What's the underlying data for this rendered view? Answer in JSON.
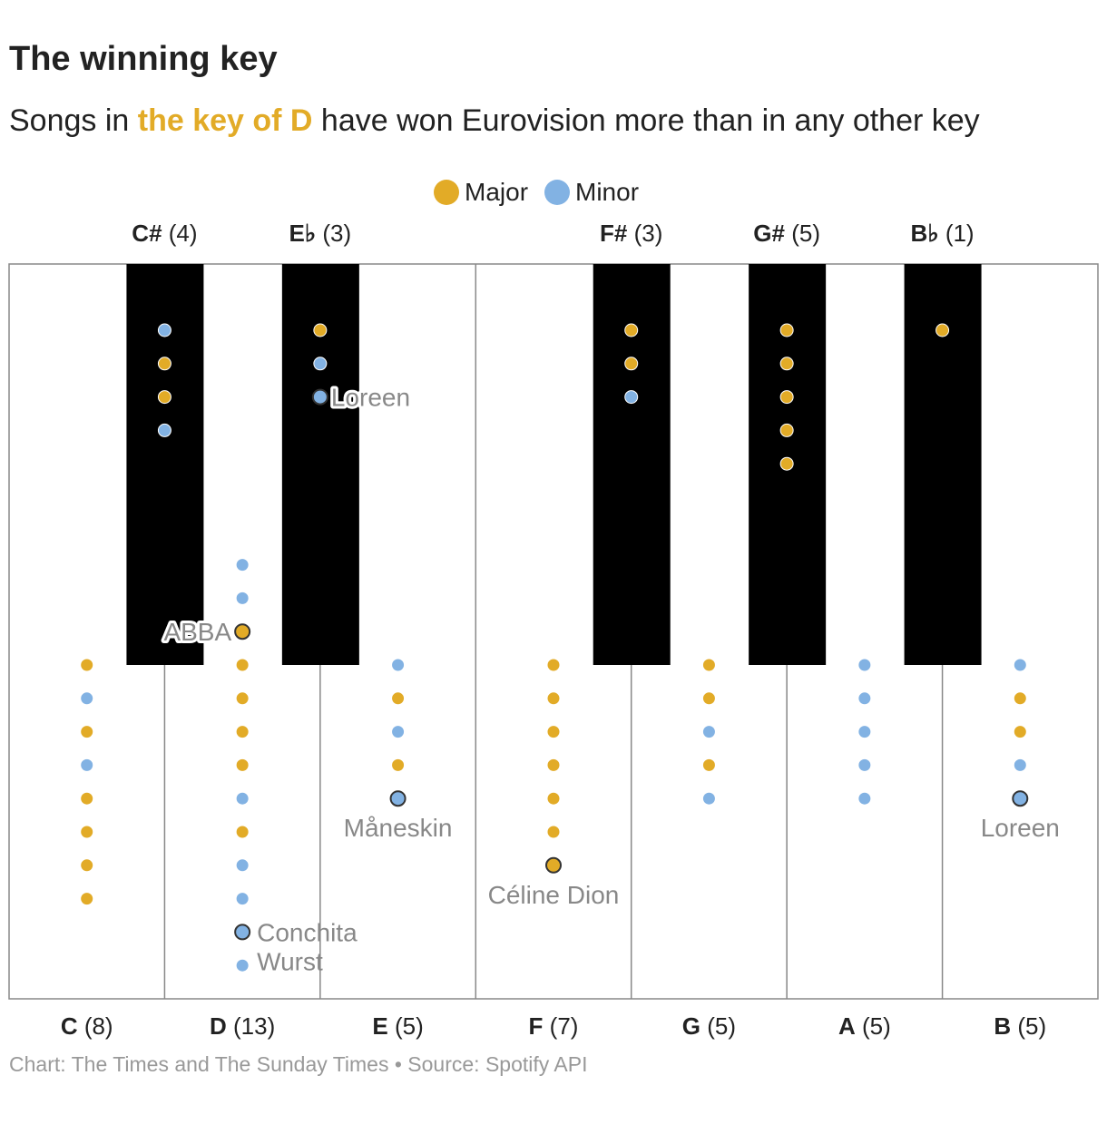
{
  "title": "The winning key",
  "subtitle": {
    "before": "Songs in ",
    "highlight": "the key of D",
    "after": " have won Eurovision more than in any other key"
  },
  "footer": "Chart: The Times and The Sunday Times • Source: Spotify API",
  "colors": {
    "major": "#e2ab27",
    "minor": "#82b2e3",
    "black_key": "#000000",
    "key_border": "#888888"
  },
  "chart_data": {
    "type": "scatter",
    "title": "The winning key",
    "legend": [
      {
        "name": "Major",
        "color": "#e2ab27"
      },
      {
        "name": "Minor",
        "color": "#82b2e3"
      }
    ],
    "legend_position": "top-center",
    "keys": [
      {
        "name": "C",
        "count": "(8)",
        "type": "white",
        "dots": [
          "M",
          "m",
          "M",
          "m",
          "M",
          "M",
          "M",
          "M"
        ]
      },
      {
        "name": "C#",
        "count": "(4)",
        "type": "black",
        "dots": [
          "m",
          "M",
          "M",
          "m"
        ]
      },
      {
        "name": "D",
        "count": "(13)",
        "type": "white",
        "dots": [
          "m",
          "m",
          "M",
          "M",
          "M",
          "M",
          "M",
          "m",
          "M",
          "m",
          "m",
          "m",
          "m"
        ],
        "annotations": [
          {
            "index": 2,
            "label": "ABBA"
          },
          {
            "index": 11,
            "label": "Conchita Wurst"
          }
        ]
      },
      {
        "name": "E♭",
        "count": "(3)",
        "type": "black",
        "dots": [
          "M",
          "m",
          "m"
        ],
        "annotations": [
          {
            "index": 2,
            "label": "Loreen"
          }
        ]
      },
      {
        "name": "E",
        "count": "(5)",
        "type": "white",
        "dots": [
          "m",
          "M",
          "m",
          "M",
          "m"
        ],
        "annotations": [
          {
            "index": 4,
            "label": "Måneskin"
          }
        ]
      },
      {
        "name": "F",
        "count": "(7)",
        "type": "white",
        "dots": [
          "M",
          "M",
          "M",
          "M",
          "M",
          "M",
          "M"
        ],
        "annotations": [
          {
            "index": 6,
            "label": "Céline Dion"
          }
        ]
      },
      {
        "name": "F#",
        "count": "(3)",
        "type": "black",
        "dots": [
          "M",
          "M",
          "m"
        ]
      },
      {
        "name": "G",
        "count": "(5)",
        "type": "white",
        "dots": [
          "M",
          "M",
          "m",
          "M",
          "m"
        ]
      },
      {
        "name": "G#",
        "count": "(5)",
        "type": "black",
        "dots": [
          "M",
          "M",
          "M",
          "M",
          "M"
        ]
      },
      {
        "name": "A",
        "count": "(5)",
        "type": "white",
        "dots": [
          "m",
          "m",
          "m",
          "m",
          "m"
        ]
      },
      {
        "name": "B♭",
        "count": "(1)",
        "type": "black",
        "dots": [
          "M"
        ]
      },
      {
        "name": "B",
        "count": "(5)",
        "type": "white",
        "dots": [
          "m",
          "M",
          "M",
          "m",
          "m"
        ],
        "annotations": [
          {
            "index": 4,
            "label": "Loreen"
          }
        ]
      }
    ]
  }
}
